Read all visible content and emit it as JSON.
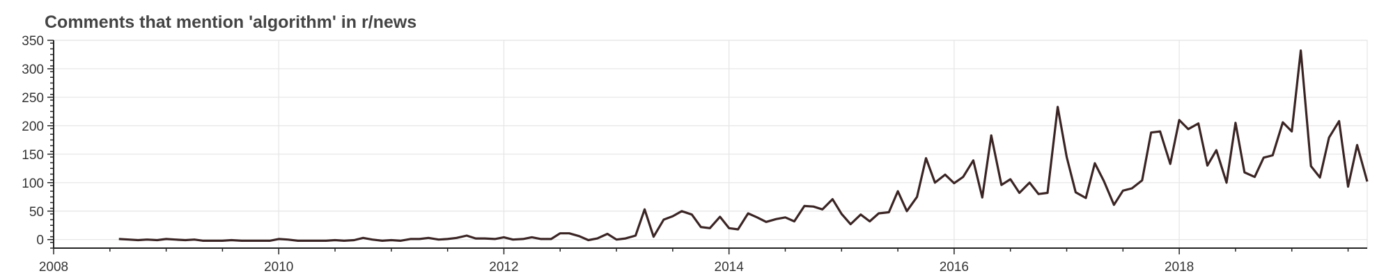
{
  "chart_data": {
    "type": "line",
    "title": "Comments that mention 'algorithm' in r/news",
    "xlabel": "",
    "ylabel": "",
    "xlim": [
      2008.0,
      2019.67
    ],
    "ylim": [
      -15,
      350
    ],
    "x_ticks": [
      2008,
      2010,
      2012,
      2014,
      2016,
      2018
    ],
    "y_ticks": [
      0,
      50,
      100,
      150,
      200,
      250,
      300,
      350
    ],
    "grid": true,
    "legend": "none",
    "line_color": "#3b2424",
    "series": [
      {
        "x": [
          2008.58,
          2008.67,
          2008.75,
          2008.83,
          2008.92,
          2009.0,
          2009.08,
          2009.17,
          2009.25,
          2009.33,
          2009.42,
          2009.5,
          2009.58,
          2009.67,
          2009.75,
          2009.83,
          2009.92,
          2010.0,
          2010.08,
          2010.17,
          2010.25,
          2010.33,
          2010.42,
          2010.5,
          2010.58,
          2010.67,
          2010.75,
          2010.83,
          2010.92,
          2011.0,
          2011.08,
          2011.17,
          2011.25,
          2011.33,
          2011.42,
          2011.5,
          2011.58,
          2011.67,
          2011.75,
          2011.83,
          2011.92,
          2012.0,
          2012.08,
          2012.17,
          2012.25,
          2012.33,
          2012.42,
          2012.5,
          2012.58,
          2012.67,
          2012.75,
          2012.83,
          2012.92,
          2013.0,
          2013.08,
          2013.17,
          2013.25,
          2013.33,
          2013.42,
          2013.5,
          2013.58,
          2013.67,
          2013.75,
          2013.83,
          2013.92,
          2014.0,
          2014.08,
          2014.17,
          2014.25,
          2014.33,
          2014.42,
          2014.5,
          2014.58,
          2014.67,
          2014.75,
          2014.83,
          2014.92,
          2015.0,
          2015.08,
          2015.17,
          2015.25,
          2015.33,
          2015.42,
          2015.5,
          2015.58,
          2015.67,
          2015.75,
          2015.83,
          2015.92,
          2016.0,
          2016.08,
          2016.17,
          2016.25,
          2016.33,
          2016.42,
          2016.5,
          2016.58,
          2016.67,
          2016.75,
          2016.83,
          2016.92,
          2017.0,
          2017.08,
          2017.17,
          2017.25,
          2017.33,
          2017.42,
          2017.5,
          2017.58,
          2017.67,
          2017.75,
          2017.83,
          2017.92,
          2018.0,
          2018.08,
          2018.17,
          2018.25,
          2018.33,
          2018.42,
          2018.5,
          2018.58,
          2018.67,
          2018.75,
          2018.83,
          2018.92,
          2019.0,
          2019.08,
          2019.17,
          2019.25,
          2019.33,
          2019.42,
          2019.5,
          2019.58,
          2019.67
        ],
        "y": [
          1,
          0,
          -1,
          0,
          -1,
          1,
          0,
          -1,
          0,
          -2,
          -2,
          -2,
          -1,
          -2,
          -2,
          -2,
          -2,
          1,
          0,
          -2,
          -2,
          -2,
          -2,
          -1,
          -2,
          -1,
          3,
          0,
          -2,
          -1,
          -2,
          1,
          1,
          3,
          0,
          1,
          3,
          7,
          2,
          2,
          1,
          4,
          0,
          1,
          4,
          1,
          1,
          11,
          11,
          6,
          -1,
          2,
          10,
          0,
          2,
          7,
          53,
          5,
          35,
          41,
          50,
          44,
          22,
          20,
          40,
          20,
          18,
          46,
          39,
          31,
          36,
          39,
          32,
          59,
          58,
          53,
          71,
          45,
          27,
          44,
          32,
          46,
          48,
          85,
          50,
          75,
          143,
          100,
          114,
          99,
          110,
          139,
          74,
          183,
          96,
          106,
          82,
          100,
          80,
          82,
          233,
          145,
          83,
          73,
          134,
          103,
          61,
          86,
          90,
          104,
          188,
          190,
          133,
          210,
          194,
          204,
          130,
          157,
          100,
          205,
          118,
          110,
          144,
          148,
          206,
          190,
          332,
          129,
          109,
          179,
          208,
          93,
          166,
          102
        ]
      }
    ]
  }
}
